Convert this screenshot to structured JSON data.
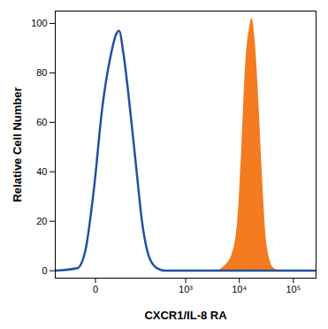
{
  "chart_data": {
    "type": "line",
    "x_label": "CXCR1/IL-8 RA",
    "y_label": "Relative Cell Number",
    "xlim": [
      -100,
      262144
    ],
    "ylim": [
      -3,
      105
    ],
    "xticks": [
      0,
      {
        "value": 1000,
        "label": "10³"
      },
      {
        "value": 10000,
        "label": "10⁴"
      },
      {
        "value": 100000,
        "label": "10⁵"
      }
    ],
    "yticks": [
      0,
      20,
      40,
      60,
      80,
      100
    ],
    "grid": false,
    "series": [
      {
        "type": "area",
        "color": "#f47b20",
        "x": [
          -100,
          3760,
          5370,
          7170,
          9300,
          11100,
          13200,
          15400,
          17100,
          19700,
          22700,
          26400,
          32600,
          43600,
          56400,
          262144
        ],
        "values": [
          0,
          0,
          2,
          6,
          20,
          50,
          85,
          98,
          102,
          92,
          70,
          40,
          10,
          1,
          0,
          0
        ]
      },
      {
        "type": "line",
        "color": "#24509f",
        "x": [
          -100,
          -26,
          -12,
          -1,
          7,
          20,
          32,
          38,
          50,
          74,
          102,
          137,
          190,
          281,
          413,
          262144
        ],
        "values": [
          0,
          1,
          8,
          35,
          65,
          87,
          96,
          97,
          88,
          65,
          42,
          20,
          6,
          1,
          0,
          0
        ]
      }
    ]
  }
}
